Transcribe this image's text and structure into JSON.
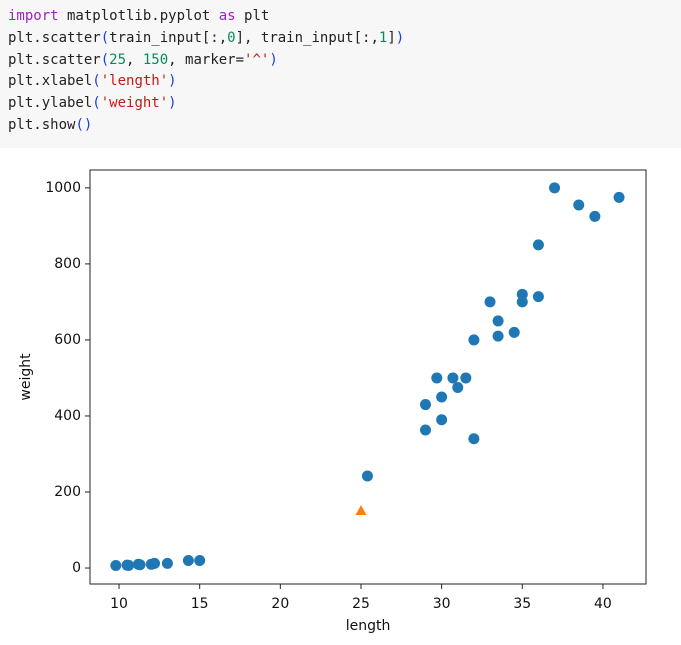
{
  "code": {
    "lines": [
      [
        {
          "text": "import",
          "color": "#a020c0"
        },
        {
          "text": " matplotlib.pyplot ",
          "color": "#222222"
        },
        {
          "text": "as",
          "color": "#a020c0"
        },
        {
          "text": " plt",
          "color": "#222222"
        }
      ],
      [
        {
          "text": "plt.scatter",
          "color": "#222222"
        },
        {
          "text": "(",
          "color": "#1a3fd8"
        },
        {
          "text": "train_input[:,",
          "color": "#222222"
        },
        {
          "text": "0",
          "color": "#0a8a5a"
        },
        {
          "text": "], train_input[:,",
          "color": "#222222"
        },
        {
          "text": "1",
          "color": "#0a8a5a"
        },
        {
          "text": "]",
          "color": "#222222"
        },
        {
          "text": ")",
          "color": "#1a3fd8"
        }
      ],
      [
        {
          "text": "plt.scatter",
          "color": "#222222"
        },
        {
          "text": "(",
          "color": "#1a3fd8"
        },
        {
          "text": "25",
          "color": "#0a8a5a"
        },
        {
          "text": ", ",
          "color": "#222222"
        },
        {
          "text": "150",
          "color": "#0a8a5a"
        },
        {
          "text": ", marker=",
          "color": "#222222"
        },
        {
          "text": "'^'",
          "color": "#c41a16"
        },
        {
          "text": ")",
          "color": "#1a3fd8"
        }
      ],
      [
        {
          "text": "plt.xlabel",
          "color": "#222222"
        },
        {
          "text": "(",
          "color": "#1a3fd8"
        },
        {
          "text": "'length'",
          "color": "#c41a16"
        },
        {
          "text": ")",
          "color": "#1a3fd8"
        }
      ],
      [
        {
          "text": "plt.ylabel",
          "color": "#222222"
        },
        {
          "text": "(",
          "color": "#1a3fd8"
        },
        {
          "text": "'weight'",
          "color": "#c41a16"
        },
        {
          "text": ")",
          "color": "#1a3fd8"
        }
      ],
      [
        {
          "text": "plt.show",
          "color": "#222222"
        },
        {
          "text": "()",
          "color": "#1a3fd8"
        }
      ]
    ]
  },
  "chart_data": {
    "type": "scatter",
    "x_label": "length",
    "y_label": "weight",
    "xlim": [
      8.2,
      42.67
    ],
    "ylim": [
      -42,
      1047
    ],
    "xticks": [
      10,
      15,
      20,
      25,
      30,
      35,
      40
    ],
    "yticks": [
      0,
      200,
      400,
      600,
      800,
      1000
    ],
    "series": [
      {
        "color": "#1f77b4",
        "marker": "o",
        "x": [
          25.4,
          29,
          29,
          29.7,
          30,
          30,
          30.7,
          31,
          31.5,
          32,
          32,
          33,
          33.5,
          33.5,
          34.5,
          35,
          35,
          36,
          36,
          37,
          38.5,
          39.5,
          41,
          9.8,
          10.5,
          10.6,
          11.2,
          11.3,
          12,
          12.2,
          13,
          14.3,
          15
        ],
        "values": [
          242,
          363,
          430,
          500,
          450,
          390,
          500,
          475,
          500,
          600,
          340,
          700,
          650,
          610,
          620,
          720,
          700,
          850,
          714,
          1000,
          955,
          925,
          975,
          6.7,
          7.5,
          7,
          9.8,
          8.7,
          9.8,
          12.2,
          12.2,
          19.7,
          19.9
        ]
      },
      {
        "color": "#ff7f0e",
        "marker": "^",
        "x": [
          25
        ],
        "values": [
          150
        ]
      }
    ]
  }
}
